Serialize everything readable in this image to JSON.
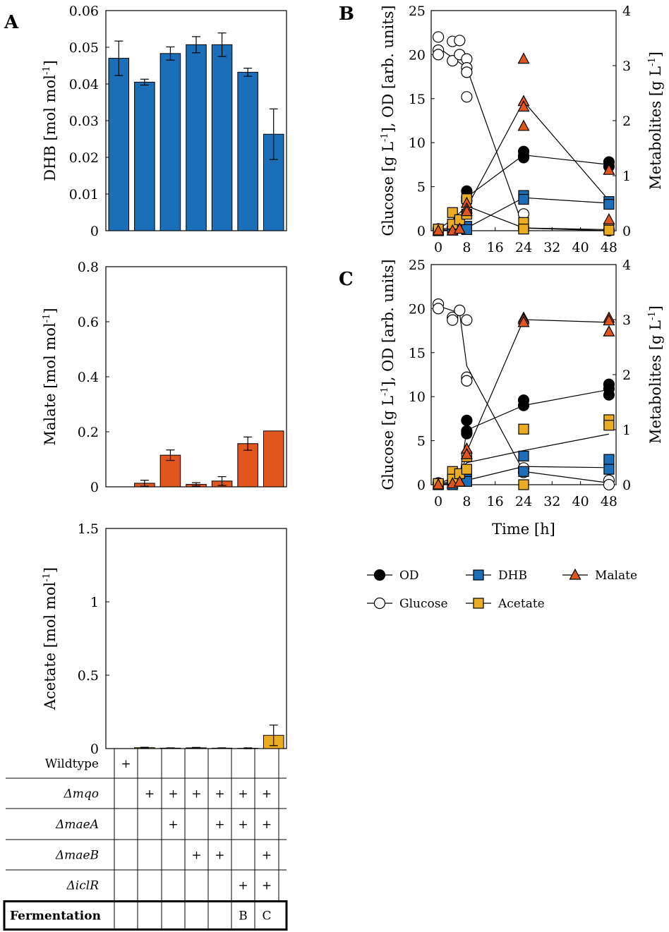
{
  "colors": {
    "dhb": "#1a6fb8",
    "malate": "#e0561d",
    "acetate": "#ebac22",
    "od": "#000000",
    "glucose": "#ffffff",
    "line": "#000000"
  },
  "panel_labels": {
    "a": "A",
    "b": "B",
    "c": "C"
  },
  "chart_data": [
    {
      "id": "A-DHB",
      "type": "bar",
      "title": "",
      "ylabel": "DHB [mol mol",
      "ylabel_sup": "-1",
      "ylabel_end": "]",
      "ylim": [
        0,
        0.06
      ],
      "yticks": [
        0,
        0.01,
        0.02,
        0.03,
        0.04,
        0.05,
        0.06
      ],
      "ytick_labels": [
        "0",
        "0.01",
        "0.02",
        "0.03",
        "0.04",
        "0.05",
        "0.06"
      ],
      "color": "#1a6fb8",
      "values": [
        0.047,
        0.0405,
        0.0483,
        0.0507,
        0.0507,
        0.0432,
        0.0263
      ],
      "errors": [
        0.0047,
        0.0008,
        0.0018,
        0.0022,
        0.0032,
        0.0011,
        0.0069
      ]
    },
    {
      "id": "A-Malate",
      "type": "bar",
      "ylabel": "Malate [mol mol",
      "ylabel_sup": "-1",
      "ylabel_end": "]",
      "ylim": [
        0,
        0.8
      ],
      "yticks": [
        0,
        0.2,
        0.4,
        0.6,
        0.8
      ],
      "ytick_labels": [
        "0",
        "0.2",
        "0.4",
        "0.6",
        "0.8"
      ],
      "color": "#e0561d",
      "values": [
        0.0,
        0.013,
        0.115,
        0.009,
        0.021,
        0.157,
        0.203
      ],
      "errors": [
        0.0,
        0.011,
        0.019,
        0.006,
        0.016,
        0.024,
        0.0
      ]
    },
    {
      "id": "A-Acetate",
      "type": "bar",
      "ylabel": "Acetate [mol mol",
      "ylabel_sup": "-1",
      "ylabel_end": "]",
      "ylim": [
        0,
        1.5
      ],
      "yticks": [
        0,
        0.5,
        1,
        1.5
      ],
      "ytick_labels": [
        "0",
        "0.5",
        "1",
        "1.5"
      ],
      "color": "#ebac22",
      "values": [
        0.0,
        0.006,
        0.003,
        0.005,
        0.003,
        0.002,
        0.09
      ],
      "errors": [
        0.0,
        0.003,
        0.002,
        0.003,
        0.002,
        0.003,
        0.07
      ]
    },
    {
      "id": "B",
      "type": "scatter",
      "xlabel": "",
      "ylabel_left": "Glucose [g L",
      "ylabel_left_sup": "-1",
      "ylabel_left_end": "], OD [arb. units]",
      "ylabel_right": "Metabolites [g L",
      "ylabel_right_sup": "-1",
      "ylabel_right_end": "]",
      "xlim": [
        -2,
        50
      ],
      "xticks": [
        0,
        8,
        16,
        24,
        32,
        40,
        48
      ],
      "ylim_left": [
        0,
        25
      ],
      "yticks_left": [
        0,
        5,
        10,
        15,
        20,
        25
      ],
      "ylim_right": [
        0,
        4
      ],
      "yticks_right": [
        0,
        1,
        2,
        3,
        4
      ],
      "series": [
        {
          "name": "Glucose",
          "axis": "left",
          "marker": "circle",
          "fill": "#ffffff",
          "x": [
            0,
            0,
            0,
            4,
            4,
            6,
            6,
            8,
            8,
            8,
            8,
            24,
            24,
            48,
            48
          ],
          "y": [
            22.0,
            20.5,
            20.0,
            21.5,
            19.3,
            21.6,
            20.0,
            19.5,
            18.5,
            18.0,
            15.2,
            1.9,
            0.3,
            0.1,
            0.0
          ],
          "line_x": [
            0,
            8,
            24,
            48
          ],
          "line_y": [
            20.8,
            18.5,
            0.3,
            0.0
          ]
        },
        {
          "name": "OD",
          "axis": "left",
          "marker": "circle",
          "fill": "#000000",
          "x": [
            0,
            0,
            4,
            4,
            6,
            8,
            8,
            8,
            24,
            24,
            24,
            48,
            48
          ],
          "y": [
            0.2,
            0.1,
            0.4,
            0.3,
            0.7,
            4.5,
            3.8,
            3.4,
            9.0,
            8.5,
            8.3,
            7.8,
            7.3
          ],
          "line_x": [
            0,
            4,
            6,
            8,
            24,
            48
          ],
          "line_y": [
            0.15,
            0.35,
            0.6,
            3.8,
            8.6,
            7.5
          ]
        },
        {
          "name": "DHB",
          "axis": "right",
          "marker": "square",
          "fill": "#1a6fb8",
          "x": [
            0,
            0,
            4,
            4,
            6,
            8,
            8,
            24,
            24,
            48,
            48
          ],
          "y": [
            0.02,
            0.0,
            0.02,
            0.01,
            0.05,
            0.08,
            0.02,
            0.64,
            0.57,
            0.53,
            0.48
          ],
          "line_x": [
            0,
            4,
            6,
            8,
            24,
            48
          ],
          "line_y": [
            0.01,
            0.02,
            0.05,
            0.05,
            0.6,
            0.5
          ]
        },
        {
          "name": "Acetate",
          "axis": "right",
          "marker": "square",
          "fill": "#ebac22",
          "x": [
            0,
            4,
            4,
            6,
            8,
            8,
            24,
            24,
            48,
            48
          ],
          "y": [
            0.03,
            0.12,
            0.33,
            0.2,
            0.58,
            0.3,
            0.15,
            0.03,
            0.05,
            0.01
          ],
          "line_x": [
            0,
            4,
            8,
            24,
            48
          ],
          "line_y": [
            0.03,
            0.2,
            0.45,
            0.05,
            0.02
          ]
        },
        {
          "name": "Malate",
          "axis": "right",
          "marker": "triangle",
          "fill": "#e0561d",
          "x": [
            0,
            4,
            6,
            8,
            8,
            8,
            24,
            24,
            24,
            24,
            48,
            48
          ],
          "y": [
            0.0,
            0.0,
            0.03,
            0.5,
            0.4,
            0.35,
            3.12,
            2.35,
            2.25,
            1.9,
            1.1,
            0.2
          ],
          "line_x": [
            0,
            6,
            8,
            24,
            48
          ],
          "line_y": [
            0.0,
            0.03,
            0.42,
            2.35,
            0.55
          ]
        }
      ]
    },
    {
      "id": "C",
      "type": "scatter",
      "xlabel": "Time [h]",
      "ylabel_left": "Glucose [g L",
      "ylabel_left_sup": "-1",
      "ylabel_left_end": "], OD [arb. units]",
      "ylabel_right": "Metabolites [g L",
      "ylabel_right_sup": "-1",
      "ylabel_right_end": "]",
      "xlim": [
        -2,
        50
      ],
      "xticks": [
        0,
        8,
        16,
        24,
        32,
        40,
        48
      ],
      "ylim_left": [
        0,
        25
      ],
      "yticks_left": [
        0,
        5,
        10,
        15,
        20,
        25
      ],
      "ylim_right": [
        0,
        4
      ],
      "yticks_right": [
        0,
        1,
        2,
        3,
        4
      ],
      "series": [
        {
          "name": "Glucose",
          "axis": "left",
          "marker": "circle",
          "fill": "#ffffff",
          "x": [
            0,
            0,
            4,
            4,
            6,
            8,
            8,
            8,
            24,
            24,
            48,
            48
          ],
          "y": [
            20.5,
            20.0,
            19.0,
            18.7,
            19.8,
            18.7,
            12.2,
            11.8,
            1.9,
            1.4,
            0.5,
            0.0
          ],
          "line_x": [
            0,
            6,
            8,
            24,
            48
          ],
          "line_y": [
            20.3,
            19.5,
            13.5,
            1.5,
            0.2
          ]
        },
        {
          "name": "OD",
          "axis": "left",
          "marker": "circle",
          "fill": "#000000",
          "x": [
            0,
            0,
            4,
            4,
            6,
            8,
            8,
            8,
            24,
            24,
            48,
            48,
            48
          ],
          "y": [
            0.2,
            0.1,
            0.4,
            0.3,
            0.8,
            7.3,
            6.1,
            5.8,
            9.6,
            9.0,
            11.4,
            10.9,
            10.2
          ],
          "line_x": [
            0,
            4,
            6,
            8,
            24,
            48
          ],
          "line_y": [
            0.15,
            0.35,
            0.8,
            6.2,
            9.0,
            10.8
          ]
        },
        {
          "name": "DHB",
          "axis": "right",
          "marker": "square",
          "fill": "#1a6fb8",
          "x": [
            0,
            0,
            4,
            4,
            6,
            8,
            8,
            24,
            24,
            48,
            48
          ],
          "y": [
            0.02,
            0.0,
            0.02,
            0.0,
            0.06,
            0.1,
            0.06,
            0.52,
            0.24,
            0.46,
            0.28
          ],
          "line_x": [
            0,
            4,
            6,
            8,
            24,
            48
          ],
          "line_y": [
            0.01,
            0.02,
            0.06,
            0.08,
            0.33,
            0.31
          ]
        },
        {
          "name": "Acetate",
          "axis": "right",
          "marker": "square",
          "fill": "#ebac22",
          "x": [
            0,
            4,
            4,
            6,
            8,
            8,
            24,
            24,
            48,
            48
          ],
          "y": [
            0.02,
            0.24,
            0.1,
            0.2,
            0.51,
            0.28,
            1.01,
            0.0,
            1.18,
            1.08
          ],
          "line_x": [
            0,
            4,
            8,
            24,
            48
          ],
          "line_y": [
            0.02,
            0.12,
            0.4,
            0.62,
            0.92
          ]
        },
        {
          "name": "Malate",
          "axis": "right",
          "marker": "triangle",
          "fill": "#e0561d",
          "x": [
            0,
            4,
            6,
            8,
            8,
            24,
            24,
            24,
            48,
            48,
            48
          ],
          "y": [
            0.0,
            0.02,
            0.05,
            0.65,
            0.55,
            3.03,
            3.0,
            2.95,
            3.03,
            2.98,
            2.78
          ],
          "line_x": [
            0,
            6,
            8,
            24,
            48
          ],
          "line_y": [
            0.0,
            0.05,
            0.6,
            3.0,
            2.95
          ]
        }
      ]
    }
  ],
  "legend": [
    {
      "name": "OD",
      "marker": "circle",
      "fill": "#000000"
    },
    {
      "name": "DHB",
      "marker": "square",
      "fill": "#1a6fb8"
    },
    {
      "name": "Malate",
      "marker": "triangle",
      "fill": "#e0561d"
    },
    {
      "name": "Glucose",
      "marker": "circle",
      "fill": "#ffffff"
    },
    {
      "name": "Acetate",
      "marker": "square",
      "fill": "#ebac22"
    }
  ],
  "strain_table": {
    "rows": [
      {
        "label": "Wildtype",
        "italic": false,
        "marks": [
          "+",
          "",
          "",
          "",
          "",
          "",
          ""
        ]
      },
      {
        "label": "Δmqo",
        "italic": true,
        "marks": [
          "",
          "+",
          "+",
          "+",
          "+",
          "+",
          "+"
        ]
      },
      {
        "label": "ΔmaeA",
        "italic": true,
        "marks": [
          "",
          "",
          "+",
          "",
          "+",
          "+",
          "+"
        ]
      },
      {
        "label": "ΔmaeB",
        "italic": true,
        "marks": [
          "",
          "",
          "",
          "+",
          "+",
          "",
          "+"
        ]
      },
      {
        "label": "ΔiclR",
        "italic": true,
        "marks": [
          "",
          "",
          "",
          "",
          "",
          "+",
          "+"
        ]
      }
    ],
    "fermentation": {
      "label": "Fermentation",
      "marks": [
        "",
        "",
        "",
        "",
        "",
        "B",
        "C"
      ]
    }
  }
}
